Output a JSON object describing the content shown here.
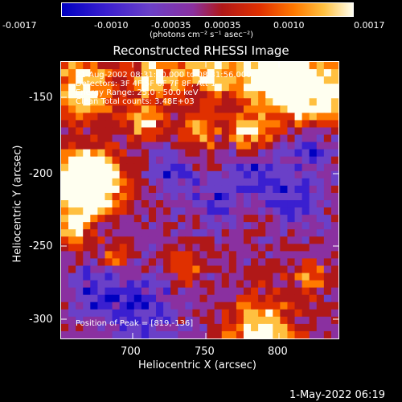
{
  "colors": {
    "background": "#000000",
    "foreground": "#ffffff"
  },
  "colorbar": {
    "ticks": [
      "-0.0017",
      "-0.0010",
      "-0.00035",
      "0.00035",
      "0.0010",
      "0.0017"
    ],
    "unit_label": "(photons cm⁻² s⁻¹ asec⁻²)",
    "gradient_colors": [
      "#0000c0",
      "#3a1fd0",
      "#6a40c8",
      "#8a30a0",
      "#b01818",
      "#e03000",
      "#ff7a00",
      "#ffc040",
      "#fffff0"
    ]
  },
  "title": "Reconstructed RHESSI Image",
  "annotations": [
    "21-Aug-2002 08:31:00.000 to 08:31:56.000",
    "Detectors: 3F 4F 5F 6F 7F 8F, Att 1",
    "Energy Range: 25.0 - 50.0 keV",
    "Clean     Total counts: 3.48E+03"
  ],
  "peak_label": "Position of Peak = [819,-136]",
  "chart_data": {
    "type": "heatmap",
    "xlabel": "Heliocentric X (arcsec)",
    "ylabel": "Heliocentric Y (arcsec)",
    "x_ticks": [
      "700",
      "750",
      "800"
    ],
    "y_ticks": [
      "-150",
      "-200",
      "-250",
      "-300"
    ],
    "xlim": [
      655,
      842
    ],
    "ylim": [
      -320,
      -132
    ],
    "zlim": [
      -0.0017,
      0.0017
    ],
    "peak_position": [
      819,
      -136
    ]
  },
  "footer_timestamp": "1-May-2022 06:19"
}
